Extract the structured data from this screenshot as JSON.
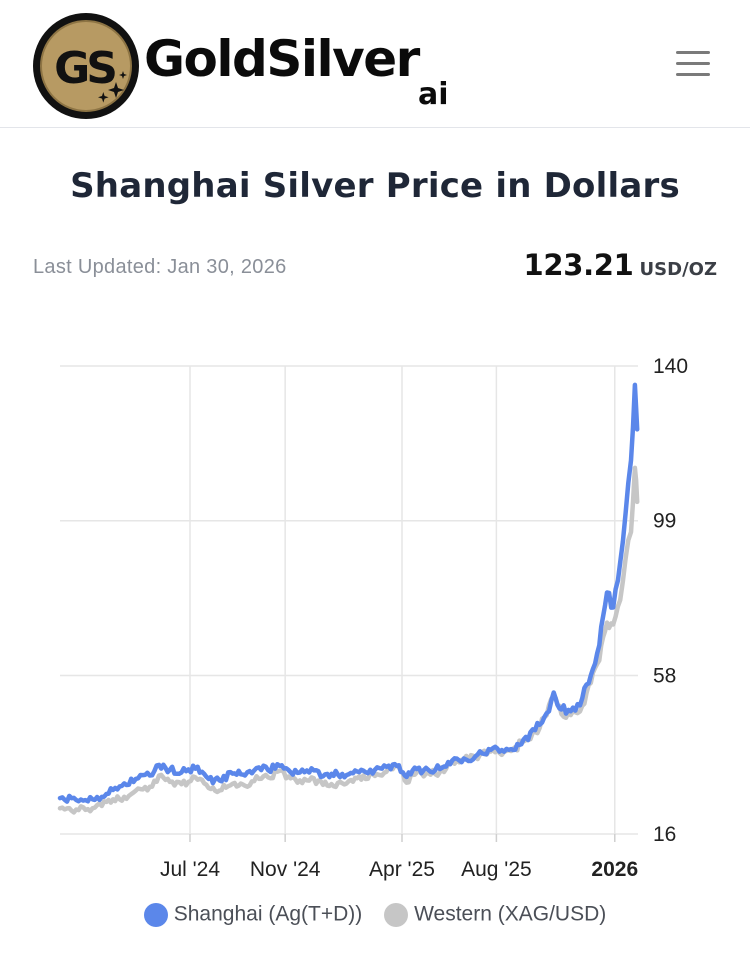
{
  "header": {
    "logo_text": "GoldSilver",
    "logo_sub": "ai",
    "logo_monogram": "GS",
    "menu_icon": "hamburger-menu-icon"
  },
  "page": {
    "title": "Shanghai Silver Price in Dollars",
    "last_updated": "Last Updated: Jan 30, 2026",
    "price_value": "123.21",
    "price_unit": "USD/OZ"
  },
  "colors": {
    "shanghai": "#5b87ea",
    "western": "#c6c6c6",
    "grid": "#e6e6e6",
    "gold": "#b79a63"
  },
  "chart_data": {
    "type": "line",
    "ylim": [
      16,
      140
    ],
    "y_ticks": [
      {
        "value": 140,
        "label": "140"
      },
      {
        "value": 99,
        "label": "99"
      },
      {
        "value": 58,
        "label": "58"
      },
      {
        "value": 16,
        "label": "16"
      }
    ],
    "x_range": [
      "2024-01-15",
      "2026-01-31"
    ],
    "x_ticks": [
      {
        "date": "2024-07-01",
        "label": "Jul '24",
        "bold": false
      },
      {
        "date": "2024-11-01",
        "label": "Nov '24",
        "bold": false
      },
      {
        "date": "2025-04-01",
        "label": "Apr '25",
        "bold": false
      },
      {
        "date": "2025-08-01",
        "label": "Aug '25",
        "bold": false
      },
      {
        "date": "2026-01-01",
        "label": "2026",
        "bold": true
      }
    ],
    "legend_position": "bottom",
    "series": [
      {
        "name": "Shanghai (Ag(T+D))",
        "color": "#5b87ea",
        "points": [
          [
            "2024-01-15",
            25.5
          ],
          [
            "2024-02-05",
            25.0
          ],
          [
            "2024-02-26",
            25.2
          ],
          [
            "2024-03-15",
            26.6
          ],
          [
            "2024-04-01",
            28.6
          ],
          [
            "2024-04-22",
            30.6
          ],
          [
            "2024-05-10",
            31.5
          ],
          [
            "2024-05-22",
            34.3
          ],
          [
            "2024-06-05",
            33.0
          ],
          [
            "2024-06-20",
            32.3
          ],
          [
            "2024-07-08",
            33.3
          ],
          [
            "2024-07-25",
            30.6
          ],
          [
            "2024-08-08",
            30.2
          ],
          [
            "2024-08-25",
            32.0
          ],
          [
            "2024-09-10",
            31.5
          ],
          [
            "2024-09-25",
            33.5
          ],
          [
            "2024-10-10",
            32.9
          ],
          [
            "2024-10-22",
            34.5
          ],
          [
            "2024-11-05",
            33.0
          ],
          [
            "2024-11-20",
            32.3
          ],
          [
            "2024-12-05",
            33.4
          ],
          [
            "2024-12-20",
            31.3
          ],
          [
            "2025-01-08",
            31.8
          ],
          [
            "2025-01-25",
            32.2
          ],
          [
            "2025-02-10",
            32.8
          ],
          [
            "2025-02-25",
            33.0
          ],
          [
            "2025-03-12",
            33.8
          ],
          [
            "2025-03-28",
            34.2
          ],
          [
            "2025-04-07",
            31.1
          ],
          [
            "2025-04-20",
            33.2
          ],
          [
            "2025-05-05",
            33.0
          ],
          [
            "2025-05-20",
            33.2
          ],
          [
            "2025-06-05",
            35.5
          ],
          [
            "2025-06-20",
            36.0
          ],
          [
            "2025-07-05",
            36.6
          ],
          [
            "2025-07-22",
            38.5
          ],
          [
            "2025-08-05",
            37.8
          ],
          [
            "2025-08-20",
            38.5
          ],
          [
            "2025-09-05",
            41.0
          ],
          [
            "2025-09-20",
            43.5
          ],
          [
            "2025-10-05",
            48.0
          ],
          [
            "2025-10-14",
            53.5
          ],
          [
            "2025-10-24",
            49.0
          ],
          [
            "2025-11-05",
            48.5
          ],
          [
            "2025-11-20",
            52.0
          ],
          [
            "2025-12-01",
            58.0
          ],
          [
            "2025-12-12",
            66.0
          ],
          [
            "2025-12-22",
            80.0
          ],
          [
            "2025-12-30",
            76.0
          ],
          [
            "2026-01-08",
            88.0
          ],
          [
            "2026-01-15",
            101.0
          ],
          [
            "2026-01-22",
            115.0
          ],
          [
            "2026-01-27",
            135.0
          ],
          [
            "2026-01-30",
            123.2
          ]
        ]
      },
      {
        "name": "Western (XAG/USD)",
        "color": "#c6c6c6",
        "points": [
          [
            "2024-01-15",
            22.8
          ],
          [
            "2024-02-05",
            22.5
          ],
          [
            "2024-02-26",
            22.8
          ],
          [
            "2024-03-15",
            24.5
          ],
          [
            "2024-04-01",
            25.2
          ],
          [
            "2024-04-22",
            27.5
          ],
          [
            "2024-05-10",
            28.5
          ],
          [
            "2024-05-22",
            31.5
          ],
          [
            "2024-06-05",
            29.8
          ],
          [
            "2024-06-20",
            29.2
          ],
          [
            "2024-07-08",
            31.0
          ],
          [
            "2024-07-25",
            28.2
          ],
          [
            "2024-08-08",
            27.5
          ],
          [
            "2024-08-25",
            29.3
          ],
          [
            "2024-09-10",
            28.8
          ],
          [
            "2024-09-25",
            31.3
          ],
          [
            "2024-10-10",
            31.0
          ],
          [
            "2024-10-22",
            32.5
          ],
          [
            "2024-11-05",
            31.2
          ],
          [
            "2024-11-20",
            30.2
          ],
          [
            "2024-12-05",
            31.0
          ],
          [
            "2024-12-20",
            29.0
          ],
          [
            "2025-01-08",
            29.5
          ],
          [
            "2025-01-25",
            30.3
          ],
          [
            "2025-02-10",
            31.5
          ],
          [
            "2025-02-25",
            31.4
          ],
          [
            "2025-03-12",
            32.5
          ],
          [
            "2025-03-28",
            33.7
          ],
          [
            "2025-04-07",
            29.6
          ],
          [
            "2025-04-20",
            32.3
          ],
          [
            "2025-05-05",
            32.2
          ],
          [
            "2025-05-20",
            32.4
          ],
          [
            "2025-06-05",
            35.0
          ],
          [
            "2025-06-20",
            35.8
          ],
          [
            "2025-07-05",
            36.3
          ],
          [
            "2025-07-22",
            37.8
          ],
          [
            "2025-08-05",
            37.5
          ],
          [
            "2025-08-20",
            38.0
          ],
          [
            "2025-09-05",
            40.5
          ],
          [
            "2025-09-20",
            43.0
          ],
          [
            "2025-10-05",
            47.5
          ],
          [
            "2025-10-14",
            52.5
          ],
          [
            "2025-10-24",
            47.8
          ],
          [
            "2025-11-05",
            47.5
          ],
          [
            "2025-11-20",
            50.0
          ],
          [
            "2025-12-01",
            56.0
          ],
          [
            "2025-12-12",
            62.0
          ],
          [
            "2025-12-22",
            72.0
          ],
          [
            "2025-12-30",
            71.5
          ],
          [
            "2026-01-08",
            78.0
          ],
          [
            "2026-01-15",
            89.0
          ],
          [
            "2026-01-22",
            96.0
          ],
          [
            "2026-01-27",
            113.0
          ],
          [
            "2026-01-30",
            104.0
          ]
        ]
      }
    ]
  },
  "legend": {
    "items": [
      {
        "label": "Shanghai (Ag(T+D))",
        "color": "#5b87ea"
      },
      {
        "label": "Western (XAG/USD)",
        "color": "#c6c6c6"
      }
    ]
  }
}
